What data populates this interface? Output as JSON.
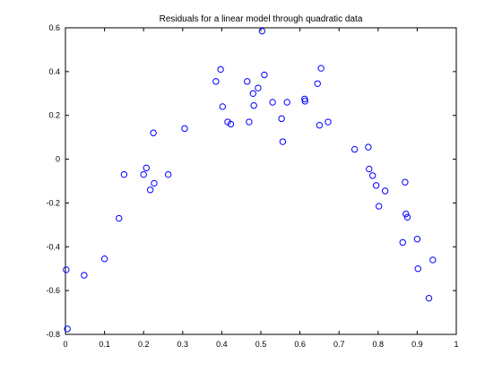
{
  "chart_data": {
    "type": "scatter",
    "title": "Residuals for a linear model through quadratic data",
    "xlabel": "",
    "ylabel": "",
    "xlim": [
      0,
      1
    ],
    "ylim": [
      -0.8,
      0.6
    ],
    "xticks": [
      0,
      0.1,
      0.2,
      0.3,
      0.4,
      0.5,
      0.6,
      0.7,
      0.8,
      0.9,
      1
    ],
    "yticks": [
      -0.8,
      -0.6,
      -0.4,
      -0.2,
      0,
      0.2,
      0.4,
      0.6
    ],
    "xtick_labels": [
      "0",
      "0.1",
      "0.2",
      "0.3",
      "0.4",
      "0.5",
      "0.6",
      "0.7",
      "0.8",
      "0.9",
      "1"
    ],
    "ytick_labels": [
      "-0.8",
      "-0.6",
      "-0.4",
      "-0.2",
      "0",
      "0.2",
      "0.4",
      "0.6"
    ],
    "grid": false,
    "marker": "circle",
    "marker_color": "#0000ff",
    "series": [
      {
        "points": [
          {
            "x": 0.002,
            "y": -0.505
          },
          {
            "x": 0.005,
            "y": -0.775
          },
          {
            "x": 0.048,
            "y": -0.53
          },
          {
            "x": 0.1,
            "y": -0.455
          },
          {
            "x": 0.137,
            "y": -0.27
          },
          {
            "x": 0.15,
            "y": -0.07
          },
          {
            "x": 0.2,
            "y": -0.07
          },
          {
            "x": 0.207,
            "y": -0.04
          },
          {
            "x": 0.217,
            "y": -0.14
          },
          {
            "x": 0.225,
            "y": 0.12
          },
          {
            "x": 0.227,
            "y": -0.11
          },
          {
            "x": 0.263,
            "y": -0.07
          },
          {
            "x": 0.305,
            "y": 0.14
          },
          {
            "x": 0.385,
            "y": 0.355
          },
          {
            "x": 0.397,
            "y": 0.41
          },
          {
            "x": 0.402,
            "y": 0.24
          },
          {
            "x": 0.415,
            "y": 0.17
          },
          {
            "x": 0.423,
            "y": 0.16
          },
          {
            "x": 0.465,
            "y": 0.355
          },
          {
            "x": 0.47,
            "y": 0.17
          },
          {
            "x": 0.48,
            "y": 0.3
          },
          {
            "x": 0.482,
            "y": 0.245
          },
          {
            "x": 0.493,
            "y": 0.325
          },
          {
            "x": 0.503,
            "y": 0.585
          },
          {
            "x": 0.509,
            "y": 0.385
          },
          {
            "x": 0.53,
            "y": 0.26
          },
          {
            "x": 0.553,
            "y": 0.185
          },
          {
            "x": 0.556,
            "y": 0.08
          },
          {
            "x": 0.567,
            "y": 0.26
          },
          {
            "x": 0.612,
            "y": 0.275
          },
          {
            "x": 0.613,
            "y": 0.265
          },
          {
            "x": 0.645,
            "y": 0.345
          },
          {
            "x": 0.65,
            "y": 0.155
          },
          {
            "x": 0.654,
            "y": 0.415
          },
          {
            "x": 0.672,
            "y": 0.17
          },
          {
            "x": 0.74,
            "y": 0.045
          },
          {
            "x": 0.775,
            "y": 0.055
          },
          {
            "x": 0.777,
            "y": -0.045
          },
          {
            "x": 0.786,
            "y": -0.075
          },
          {
            "x": 0.795,
            "y": -0.12
          },
          {
            "x": 0.802,
            "y": -0.215
          },
          {
            "x": 0.818,
            "y": -0.145
          },
          {
            "x": 0.863,
            "y": -0.38
          },
          {
            "x": 0.869,
            "y": -0.105
          },
          {
            "x": 0.871,
            "y": -0.25
          },
          {
            "x": 0.875,
            "y": -0.265
          },
          {
            "x": 0.9,
            "y": -0.365
          },
          {
            "x": 0.902,
            "y": -0.5
          },
          {
            "x": 0.93,
            "y": -0.635
          },
          {
            "x": 0.94,
            "y": -0.46
          }
        ]
      }
    ]
  }
}
